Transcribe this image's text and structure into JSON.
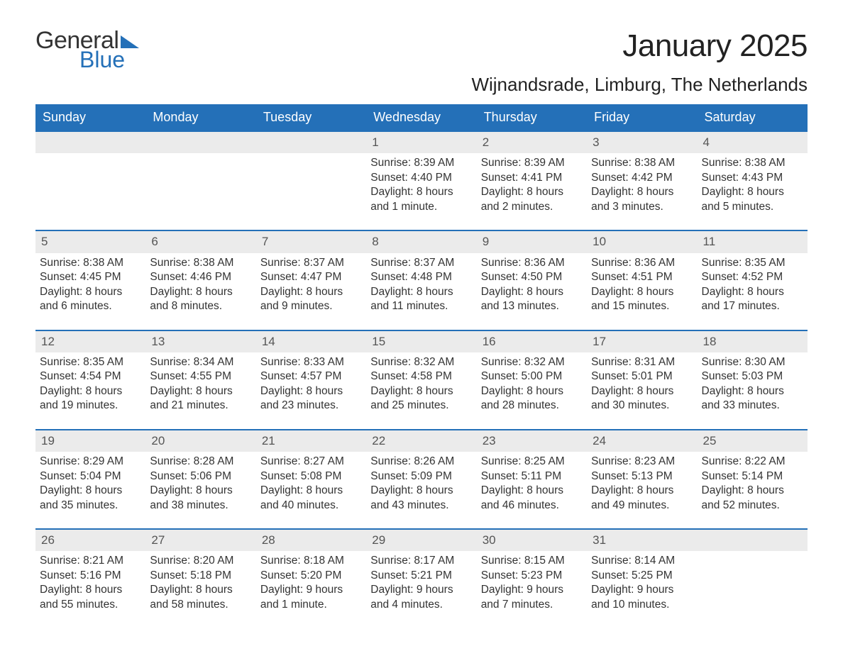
{
  "logo": {
    "text_general": "General",
    "text_blue": "Blue",
    "accent_color": "#2470b8"
  },
  "title": "January 2025",
  "location": "Wijnandsrade, Limburg, The Netherlands",
  "colors": {
    "header_bg": "#2470b8",
    "header_text": "#ffffff",
    "daynum_bg": "#ebebeb",
    "daynum_border": "#2470b8",
    "body_text": "#333333",
    "daynum_text": "#555555",
    "page_bg": "#ffffff"
  },
  "typography": {
    "title_fontsize": 44,
    "location_fontsize": 26,
    "header_fontsize": 18,
    "cell_fontsize": 15.5,
    "logo_fontsize": 34
  },
  "day_headers": [
    "Sunday",
    "Monday",
    "Tuesday",
    "Wednesday",
    "Thursday",
    "Friday",
    "Saturday"
  ],
  "weeks": [
    [
      null,
      null,
      null,
      {
        "n": "1",
        "sr": "Sunrise: 8:39 AM",
        "ss": "Sunset: 4:40 PM",
        "dl1": "Daylight: 8 hours",
        "dl2": "and 1 minute."
      },
      {
        "n": "2",
        "sr": "Sunrise: 8:39 AM",
        "ss": "Sunset: 4:41 PM",
        "dl1": "Daylight: 8 hours",
        "dl2": "and 2 minutes."
      },
      {
        "n": "3",
        "sr": "Sunrise: 8:38 AM",
        "ss": "Sunset: 4:42 PM",
        "dl1": "Daylight: 8 hours",
        "dl2": "and 3 minutes."
      },
      {
        "n": "4",
        "sr": "Sunrise: 8:38 AM",
        "ss": "Sunset: 4:43 PM",
        "dl1": "Daylight: 8 hours",
        "dl2": "and 5 minutes."
      }
    ],
    [
      {
        "n": "5",
        "sr": "Sunrise: 8:38 AM",
        "ss": "Sunset: 4:45 PM",
        "dl1": "Daylight: 8 hours",
        "dl2": "and 6 minutes."
      },
      {
        "n": "6",
        "sr": "Sunrise: 8:38 AM",
        "ss": "Sunset: 4:46 PM",
        "dl1": "Daylight: 8 hours",
        "dl2": "and 8 minutes."
      },
      {
        "n": "7",
        "sr": "Sunrise: 8:37 AM",
        "ss": "Sunset: 4:47 PM",
        "dl1": "Daylight: 8 hours",
        "dl2": "and 9 minutes."
      },
      {
        "n": "8",
        "sr": "Sunrise: 8:37 AM",
        "ss": "Sunset: 4:48 PM",
        "dl1": "Daylight: 8 hours",
        "dl2": "and 11 minutes."
      },
      {
        "n": "9",
        "sr": "Sunrise: 8:36 AM",
        "ss": "Sunset: 4:50 PM",
        "dl1": "Daylight: 8 hours",
        "dl2": "and 13 minutes."
      },
      {
        "n": "10",
        "sr": "Sunrise: 8:36 AM",
        "ss": "Sunset: 4:51 PM",
        "dl1": "Daylight: 8 hours",
        "dl2": "and 15 minutes."
      },
      {
        "n": "11",
        "sr": "Sunrise: 8:35 AM",
        "ss": "Sunset: 4:52 PM",
        "dl1": "Daylight: 8 hours",
        "dl2": "and 17 minutes."
      }
    ],
    [
      {
        "n": "12",
        "sr": "Sunrise: 8:35 AM",
        "ss": "Sunset: 4:54 PM",
        "dl1": "Daylight: 8 hours",
        "dl2": "and 19 minutes."
      },
      {
        "n": "13",
        "sr": "Sunrise: 8:34 AM",
        "ss": "Sunset: 4:55 PM",
        "dl1": "Daylight: 8 hours",
        "dl2": "and 21 minutes."
      },
      {
        "n": "14",
        "sr": "Sunrise: 8:33 AM",
        "ss": "Sunset: 4:57 PM",
        "dl1": "Daylight: 8 hours",
        "dl2": "and 23 minutes."
      },
      {
        "n": "15",
        "sr": "Sunrise: 8:32 AM",
        "ss": "Sunset: 4:58 PM",
        "dl1": "Daylight: 8 hours",
        "dl2": "and 25 minutes."
      },
      {
        "n": "16",
        "sr": "Sunrise: 8:32 AM",
        "ss": "Sunset: 5:00 PM",
        "dl1": "Daylight: 8 hours",
        "dl2": "and 28 minutes."
      },
      {
        "n": "17",
        "sr": "Sunrise: 8:31 AM",
        "ss": "Sunset: 5:01 PM",
        "dl1": "Daylight: 8 hours",
        "dl2": "and 30 minutes."
      },
      {
        "n": "18",
        "sr": "Sunrise: 8:30 AM",
        "ss": "Sunset: 5:03 PM",
        "dl1": "Daylight: 8 hours",
        "dl2": "and 33 minutes."
      }
    ],
    [
      {
        "n": "19",
        "sr": "Sunrise: 8:29 AM",
        "ss": "Sunset: 5:04 PM",
        "dl1": "Daylight: 8 hours",
        "dl2": "and 35 minutes."
      },
      {
        "n": "20",
        "sr": "Sunrise: 8:28 AM",
        "ss": "Sunset: 5:06 PM",
        "dl1": "Daylight: 8 hours",
        "dl2": "and 38 minutes."
      },
      {
        "n": "21",
        "sr": "Sunrise: 8:27 AM",
        "ss": "Sunset: 5:08 PM",
        "dl1": "Daylight: 8 hours",
        "dl2": "and 40 minutes."
      },
      {
        "n": "22",
        "sr": "Sunrise: 8:26 AM",
        "ss": "Sunset: 5:09 PM",
        "dl1": "Daylight: 8 hours",
        "dl2": "and 43 minutes."
      },
      {
        "n": "23",
        "sr": "Sunrise: 8:25 AM",
        "ss": "Sunset: 5:11 PM",
        "dl1": "Daylight: 8 hours",
        "dl2": "and 46 minutes."
      },
      {
        "n": "24",
        "sr": "Sunrise: 8:23 AM",
        "ss": "Sunset: 5:13 PM",
        "dl1": "Daylight: 8 hours",
        "dl2": "and 49 minutes."
      },
      {
        "n": "25",
        "sr": "Sunrise: 8:22 AM",
        "ss": "Sunset: 5:14 PM",
        "dl1": "Daylight: 8 hours",
        "dl2": "and 52 minutes."
      }
    ],
    [
      {
        "n": "26",
        "sr": "Sunrise: 8:21 AM",
        "ss": "Sunset: 5:16 PM",
        "dl1": "Daylight: 8 hours",
        "dl2": "and 55 minutes."
      },
      {
        "n": "27",
        "sr": "Sunrise: 8:20 AM",
        "ss": "Sunset: 5:18 PM",
        "dl1": "Daylight: 8 hours",
        "dl2": "and 58 minutes."
      },
      {
        "n": "28",
        "sr": "Sunrise: 8:18 AM",
        "ss": "Sunset: 5:20 PM",
        "dl1": "Daylight: 9 hours",
        "dl2": "and 1 minute."
      },
      {
        "n": "29",
        "sr": "Sunrise: 8:17 AM",
        "ss": "Sunset: 5:21 PM",
        "dl1": "Daylight: 9 hours",
        "dl2": "and 4 minutes."
      },
      {
        "n": "30",
        "sr": "Sunrise: 8:15 AM",
        "ss": "Sunset: 5:23 PM",
        "dl1": "Daylight: 9 hours",
        "dl2": "and 7 minutes."
      },
      {
        "n": "31",
        "sr": "Sunrise: 8:14 AM",
        "ss": "Sunset: 5:25 PM",
        "dl1": "Daylight: 9 hours",
        "dl2": "and 10 minutes."
      },
      null
    ]
  ]
}
